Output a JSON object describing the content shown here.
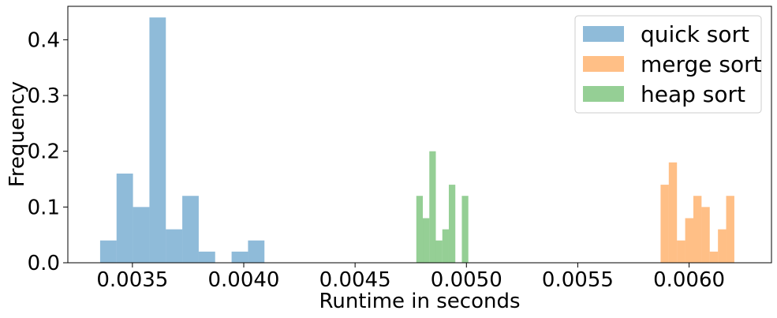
{
  "chart_data": {
    "type": "histogram",
    "xlabel": "Runtime in seconds",
    "ylabel": "Frequency",
    "xlim": [
      0.00321,
      0.00637
    ],
    "ylim": [
      0,
      0.46
    ],
    "x_ticks": [
      {
        "value": 0.0035,
        "label": "0.0035"
      },
      {
        "value": 0.004,
        "label": "0.0040"
      },
      {
        "value": 0.0045,
        "label": "0.0045"
      },
      {
        "value": 0.005,
        "label": "0.0050"
      },
      {
        "value": 0.0055,
        "label": "0.0055"
      },
      {
        "value": 0.006,
        "label": "0.0060"
      }
    ],
    "y_ticks": [
      {
        "value": 0.0,
        "label": "0.0"
      },
      {
        "value": 0.1,
        "label": "0.1"
      },
      {
        "value": 0.2,
        "label": "0.2"
      },
      {
        "value": 0.3,
        "label": "0.3"
      },
      {
        "value": 0.4,
        "label": "0.4"
      }
    ],
    "grid": false,
    "legend_position": "top-right",
    "series": [
      {
        "name": "quick sort",
        "color": "#1f77b4",
        "alpha": 0.5,
        "bin_start": 0.003355,
        "bin_width": 7.38e-05,
        "values": [
          0.04,
          0.16,
          0.1,
          0.44,
          0.06,
          0.12,
          0.02,
          0.0,
          0.02,
          0.04
        ]
      },
      {
        "name": "merge sort",
        "color": "#ff7f0e",
        "alpha": 0.5,
        "bin_start": 0.005872,
        "bin_width": 3.68e-05,
        "values": [
          0.14,
          0.18,
          0.04,
          0.08,
          0.12,
          0.1,
          0.02,
          0.06,
          0.12
        ]
      },
      {
        "name": "heap sort",
        "color": "#2ca02c",
        "alpha": 0.5,
        "bin_start": 0.004775,
        "bin_width": 2.92e-05,
        "values": [
          0.12,
          0.08,
          0.2,
          0.04,
          0.06,
          0.14,
          0.0,
          0.12
        ]
      }
    ]
  }
}
